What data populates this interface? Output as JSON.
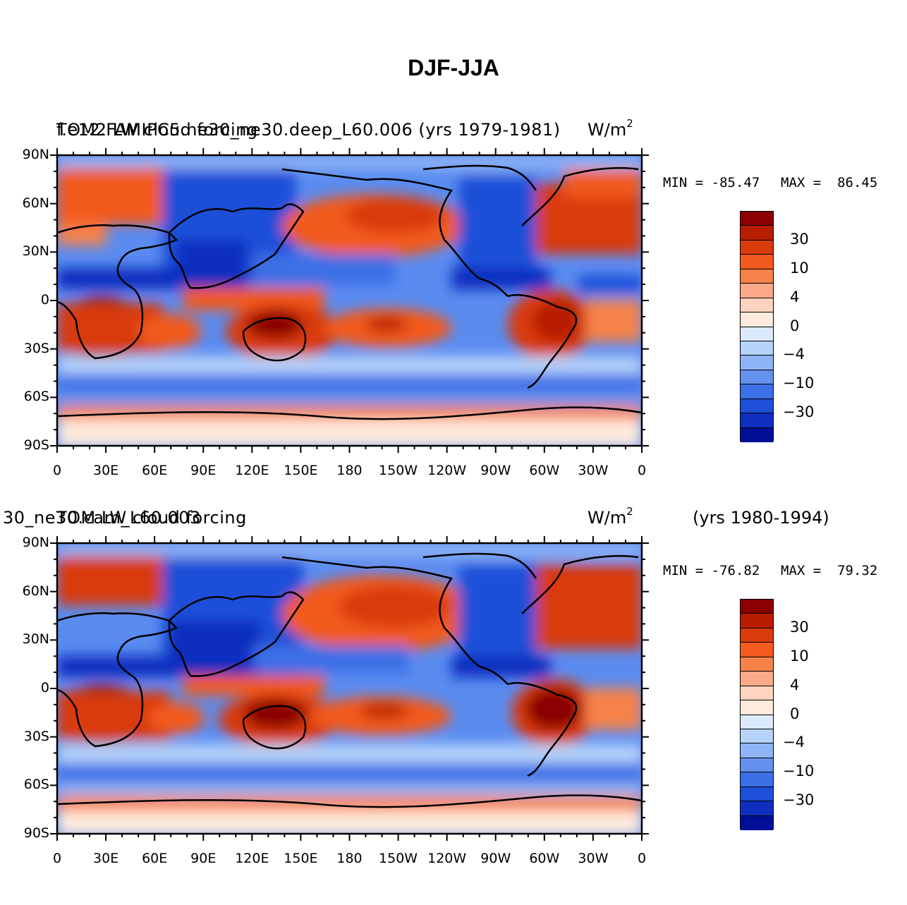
{
  "title": "DJF-JJA",
  "panels": [
    {
      "id": "top",
      "left_title_a": "f.e12.FAMIPC5.ne30_ne30.deep_L60.006 (yrs 1979-1981)",
      "left_title_b": "TOM2 LW cloud forcing",
      "units": "W/m",
      "units_sup": "2",
      "right_title": "",
      "min_label": "MIN = -85.47",
      "max_label": "MAX =  86.45"
    },
    {
      "id": "bottom",
      "left_title_a": "30_ne30.cam_L60.003",
      "left_title_b": "TOM LW cloud forcing",
      "units": "W/m",
      "units_sup": "2",
      "right_title": "(yrs 1980-1994)",
      "min_label": "MIN = -76.82",
      "max_label": "MAX =  79.32"
    }
  ],
  "lat_labels": [
    "90N",
    "60N",
    "30N",
    "0",
    "30S",
    "60S",
    "90S"
  ],
  "lon_labels": [
    "0",
    "30E",
    "60E",
    "90E",
    "120E",
    "150E",
    "180",
    "150W",
    "120W",
    "90W",
    "60W",
    "30W",
    "0"
  ],
  "colorbar": {
    "labels": [
      "30",
      "10",
      "4",
      "0",
      "−4",
      "−10",
      "−30"
    ],
    "colors": [
      "#8b0000",
      "#b81d00",
      "#d93b0c",
      "#f25a1f",
      "#f6824a",
      "#fca98a",
      "#fed4c0",
      "#feebdd",
      "#dbeafc",
      "#b6d3fa",
      "#8fb4f6",
      "#6591ee",
      "#3d6fe6",
      "#1f4fd8",
      "#0e2fbf",
      "#000f96"
    ]
  },
  "map_colors": {
    "ocean_base": "#5a8cf0",
    "land_warm": "#d93b0c",
    "deep_red": "#8b0000",
    "deep_blue": "#0e2fbf",
    "light_blue": "#b6d3fa",
    "peach": "#feebdd"
  }
}
